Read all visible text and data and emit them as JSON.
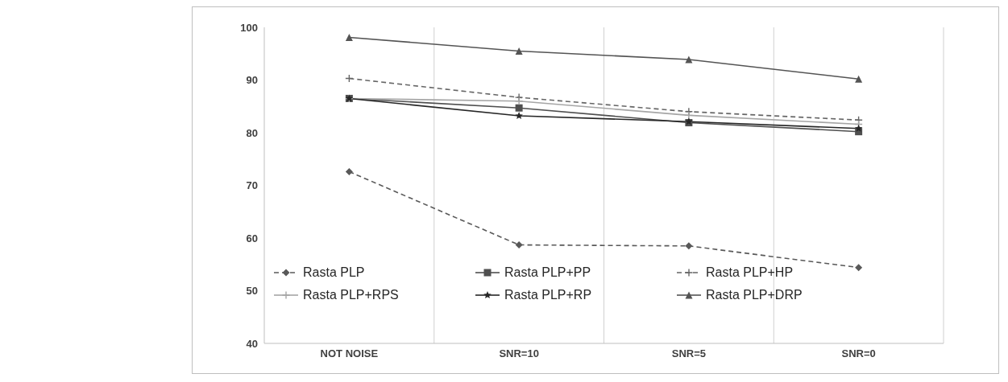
{
  "chart_data": {
    "type": "line",
    "categories": [
      "NOT NOISE",
      "SNR=10",
      "SNR=5",
      "SNR=0"
    ],
    "ylim": [
      40,
      100
    ],
    "yticks": [
      40,
      50,
      60,
      70,
      80,
      90,
      100
    ],
    "grid": "x",
    "legend": "bottom",
    "series": [
      {
        "name": "Rasta PLP",
        "color": "#595959",
        "marker": "diamond",
        "line_style": "dashed",
        "values": [
          72.6,
          58.7,
          58.5,
          54.4
        ]
      },
      {
        "name": "Rasta PLP+PP",
        "color": "#4f4f4f",
        "marker": "square",
        "line_style": "solid",
        "values": [
          86.5,
          84.7,
          81.9,
          80.2
        ]
      },
      {
        "name": "Rasta PLP+HP",
        "color": "#666666",
        "marker": "cross",
        "line_style": "dashed",
        "values": [
          90.3,
          86.7,
          84.0,
          82.4
        ]
      },
      {
        "name": "Rasta PLP+RPS",
        "color": "#a6a6a6",
        "marker": "cross",
        "line_style": "solid",
        "values": [
          86.5,
          86.0,
          83.3,
          81.6
        ]
      },
      {
        "name": "Rasta PLP+RP",
        "color": "#262626",
        "marker": "star",
        "line_style": "solid",
        "values": [
          86.5,
          83.2,
          82.1,
          80.8
        ]
      },
      {
        "name": "Rasta PLP+DRP",
        "color": "#545454",
        "marker": "triangle",
        "line_style": "solid",
        "values": [
          98.1,
          95.5,
          93.9,
          90.2
        ]
      }
    ]
  }
}
